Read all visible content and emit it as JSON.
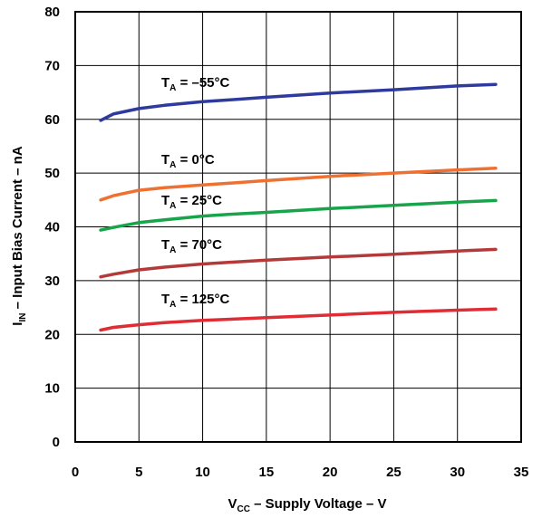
{
  "chart_data": {
    "type": "line",
    "xlabel": {
      "prefix": "V",
      "sub": "CC",
      "suffix": " – Supply Voltage – V"
    },
    "ylabel": {
      "prefix": "I",
      "sub": "IN",
      "suffix": " – Input Bias Current – nA"
    },
    "xlim": [
      0,
      35
    ],
    "ylim": [
      0,
      80
    ],
    "x_ticks": [
      "0",
      "5",
      "10",
      "15",
      "20",
      "25",
      "30",
      "35"
    ],
    "y_ticks": [
      "0",
      "10",
      "20",
      "30",
      "40",
      "50",
      "60",
      "70",
      "80"
    ],
    "grid": true,
    "series": [
      {
        "name": {
          "prefix": "T",
          "sub": "A",
          "suffix": " = –55°C"
        },
        "color": "#2e3a9e",
        "x": [
          2,
          3,
          5,
          7,
          10,
          12,
          15,
          20,
          25,
          30,
          33
        ],
        "y": [
          59.8,
          61.0,
          62.0,
          62.6,
          63.3,
          63.6,
          64.1,
          64.9,
          65.5,
          66.2,
          66.5
        ]
      },
      {
        "name": {
          "prefix": "T",
          "sub": "A",
          "suffix": " = 0°C"
        },
        "color": "#ee7132",
        "x": [
          2,
          3,
          5,
          7,
          10,
          12,
          15,
          20,
          25,
          30,
          33
        ],
        "y": [
          45.0,
          45.8,
          46.8,
          47.3,
          47.8,
          48.1,
          48.6,
          49.4,
          50.0,
          50.6,
          50.9
        ]
      },
      {
        "name": {
          "prefix": "T",
          "sub": "A",
          "suffix": " = 25°C"
        },
        "color": "#17a44a",
        "x": [
          2,
          3,
          5,
          7,
          10,
          12,
          15,
          20,
          25,
          30,
          33
        ],
        "y": [
          39.4,
          39.9,
          40.8,
          41.3,
          42.0,
          42.3,
          42.7,
          43.4,
          44.0,
          44.6,
          44.9
        ]
      },
      {
        "name": {
          "prefix": "T",
          "sub": "A",
          "suffix": " = 70°C"
        },
        "color": "#b43a3a",
        "x": [
          2,
          3,
          5,
          7,
          10,
          12,
          15,
          20,
          25,
          30,
          33
        ],
        "y": [
          30.7,
          31.2,
          32.0,
          32.5,
          33.1,
          33.4,
          33.8,
          34.4,
          34.9,
          35.5,
          35.8
        ]
      },
      {
        "name": {
          "prefix": "T",
          "sub": "A",
          "suffix": " = 125°C"
        },
        "color": "#e02d35",
        "x": [
          2,
          3,
          5,
          7,
          10,
          12,
          15,
          20,
          25,
          30,
          33
        ],
        "y": [
          20.8,
          21.3,
          21.8,
          22.2,
          22.6,
          22.8,
          23.1,
          23.6,
          24.1,
          24.5,
          24.7
        ]
      }
    ]
  }
}
